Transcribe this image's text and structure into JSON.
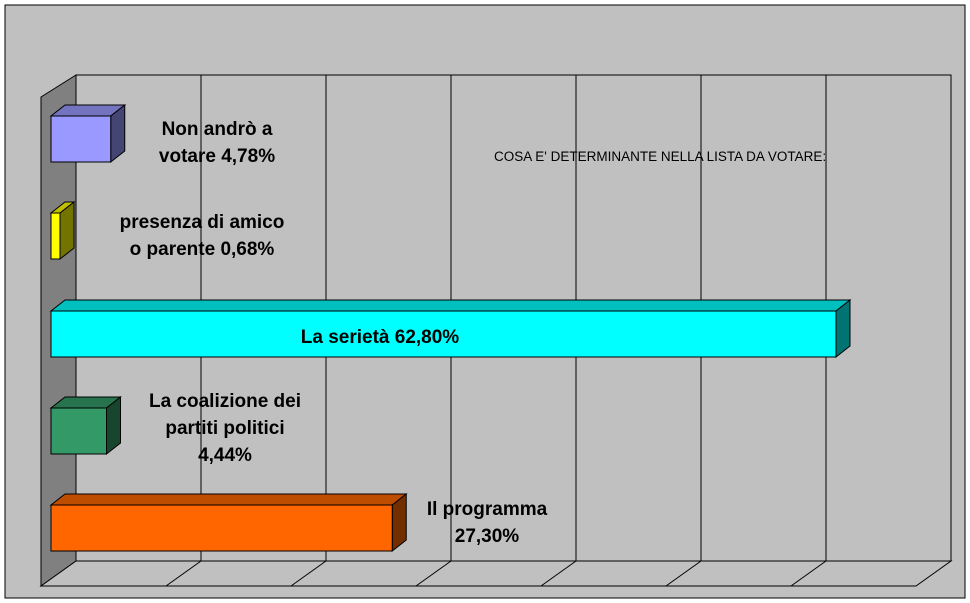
{
  "chart_data": {
    "type": "bar",
    "orientation": "horizontal",
    "title": "COSA E' DETERMINANTE NELLA LISTA DA VOTARE:",
    "xlim": [
      0,
      70
    ],
    "grid": true,
    "legend": "none",
    "categories": [
      "Non andrò a votare 4,78%",
      "presenza di amico o parente 0,68%",
      "La serietà 62,80%",
      "La coalizione dei partiti politici 4,44%",
      "Il programma 27,30%"
    ],
    "values": [
      4.78,
      0.68,
      62.8,
      4.44,
      27.3
    ],
    "bars": [
      {
        "value": 4.78,
        "label_lines": [
          "Non andrò a",
          "votare 4,78%"
        ],
        "color": "#9999ff"
      },
      {
        "value": 0.68,
        "label_lines": [
          "presenza di amico",
          "o parente 0,68%"
        ],
        "color": "#ffff00"
      },
      {
        "value": 62.8,
        "label_lines": [
          "La serietà 62,80%"
        ],
        "color": "#00ffff"
      },
      {
        "value": 4.44,
        "label_lines": [
          "La coalizione dei",
          "partiti politici",
          "4,44%"
        ],
        "color": "#339966"
      },
      {
        "value": 27.3,
        "label_lines": [
          "Il programma",
          "27,30%"
        ],
        "color": "#ff6600"
      }
    ],
    "colors": {
      "background": "#c0c0c0",
      "wall": "#c0c0c0",
      "side_wall": "#808080",
      "grid": "#000000"
    }
  }
}
